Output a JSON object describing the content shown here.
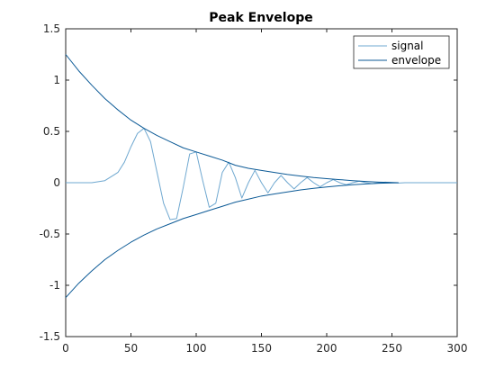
{
  "chart_data": {
    "type": "line",
    "title": "Peak Envelope",
    "xlabel": "",
    "ylabel": "",
    "xlim": [
      0,
      300
    ],
    "ylim": [
      -1.5,
      1.5
    ],
    "xticks": [
      0,
      50,
      100,
      150,
      200,
      250,
      300
    ],
    "yticks": [
      -1.5,
      -1,
      -0.5,
      0,
      0.5,
      1,
      1.5
    ],
    "xtick_labels": [
      "0",
      "50",
      "100",
      "150",
      "200",
      "250",
      "300"
    ],
    "ytick_labels": [
      "-1.5",
      "-1",
      "-0.5",
      "0",
      "0.5",
      "1",
      "1.5"
    ],
    "grid": false,
    "legend_position": "top-right",
    "series": [
      {
        "name": "signal",
        "color": "#6fa8d0",
        "x": [
          0,
          10,
          20,
          30,
          40,
          45,
          50,
          55,
          60,
          65,
          70,
          75,
          80,
          85,
          90,
          95,
          100,
          105,
          110,
          115,
          120,
          125,
          130,
          135,
          140,
          145,
          150,
          155,
          160,
          165,
          170,
          175,
          180,
          185,
          190,
          195,
          200,
          205,
          210,
          215,
          220,
          225,
          230,
          235,
          240,
          245,
          250,
          255,
          260,
          270,
          280,
          290,
          300
        ],
        "y": [
          0,
          0,
          0,
          0.02,
          0.1,
          0.2,
          0.35,
          0.48,
          0.53,
          0.4,
          0.1,
          -0.2,
          -0.36,
          -0.35,
          -0.05,
          0.28,
          0.3,
          0.02,
          -0.24,
          -0.2,
          0.1,
          0.2,
          0.05,
          -0.15,
          0.0,
          0.12,
          0.0,
          -0.1,
          0.0,
          0.07,
          0.0,
          -0.06,
          0.0,
          0.05,
          0.0,
          -0.04,
          0.0,
          0.03,
          0.0,
          -0.02,
          0.0,
          0.015,
          0.0,
          -0.01,
          0.0,
          0.005,
          0.0,
          -0.003,
          0,
          0,
          0,
          0,
          0
        ]
      },
      {
        "name": "envelope",
        "color": "#0c5a96",
        "x": [
          0,
          10,
          20,
          30,
          40,
          50,
          60,
          70,
          80,
          90,
          100,
          110,
          120,
          130,
          140,
          150,
          160,
          170,
          180,
          190,
          200,
          210,
          220,
          230,
          240,
          250,
          255
        ],
        "y": [
          1.25,
          1.09,
          0.95,
          0.82,
          0.71,
          0.61,
          0.53,
          0.46,
          0.4,
          0.34,
          0.3,
          0.26,
          0.22,
          0.17,
          0.14,
          0.12,
          0.1,
          0.08,
          0.065,
          0.05,
          0.04,
          0.03,
          0.02,
          0.012,
          0.006,
          0.002,
          0.0
        ]
      },
      {
        "name": "",
        "color": "#0c5a96",
        "x": [
          0,
          10,
          20,
          30,
          40,
          50,
          60,
          70,
          80,
          90,
          100,
          110,
          120,
          130,
          140,
          150,
          160,
          170,
          180,
          190,
          200,
          210,
          220,
          230,
          240,
          250,
          255
        ],
        "y": [
          -1.12,
          -0.98,
          -0.86,
          -0.75,
          -0.66,
          -0.58,
          -0.51,
          -0.45,
          -0.4,
          -0.35,
          -0.31,
          -0.27,
          -0.23,
          -0.19,
          -0.16,
          -0.13,
          -0.11,
          -0.09,
          -0.07,
          -0.055,
          -0.042,
          -0.03,
          -0.02,
          -0.012,
          -0.006,
          -0.002,
          0.0
        ]
      }
    ],
    "legend_entries": [
      "signal",
      "envelope"
    ]
  }
}
